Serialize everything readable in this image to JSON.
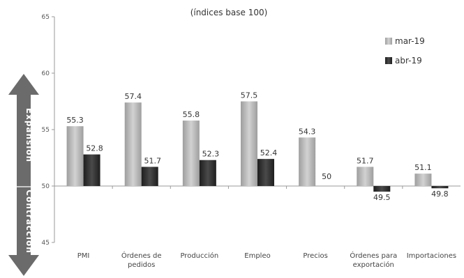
{
  "chart_data": {
    "type": "bar",
    "subtitle": "(índices base 100)",
    "categories": [
      "PMI",
      "Órdenes de pedidos",
      "Producción",
      "Empleo",
      "Precios",
      "Órdenes para exportación",
      "Importaciones"
    ],
    "category_lines": [
      [
        "PMI"
      ],
      [
        "Órdenes de",
        "pedidos"
      ],
      [
        "Producción"
      ],
      [
        "Empleo"
      ],
      [
        "Precios"
      ],
      [
        "Órdenes para",
        "exportación"
      ],
      [
        "Importaciones"
      ]
    ],
    "series": [
      {
        "name": "mar-19",
        "values": [
          55.3,
          57.4,
          55.8,
          57.5,
          54.3,
          51.7,
          51.1
        ],
        "color": "#bdbdbd",
        "labels": [
          "55.3",
          "57.4",
          "55.8",
          "57.5",
          "54.3",
          "51.7",
          "51.1"
        ]
      },
      {
        "name": "abr-19",
        "values": [
          52.8,
          51.7,
          52.3,
          52.4,
          50,
          49.5,
          49.8
        ],
        "color": "#3a3a3a",
        "labels": [
          "52.8",
          "51.7",
          "52.3",
          "52.4",
          "50",
          "49.5",
          "49.8"
        ]
      }
    ],
    "baseline": 50,
    "ylim": [
      45,
      65
    ],
    "yticks": [
      45,
      50,
      55,
      60,
      65
    ],
    "grid": false,
    "legend_position": "top-right",
    "arrow_labels": {
      "up": "Expansión",
      "down": "Contracción"
    },
    "arrow_color": "#6b6b6b"
  }
}
